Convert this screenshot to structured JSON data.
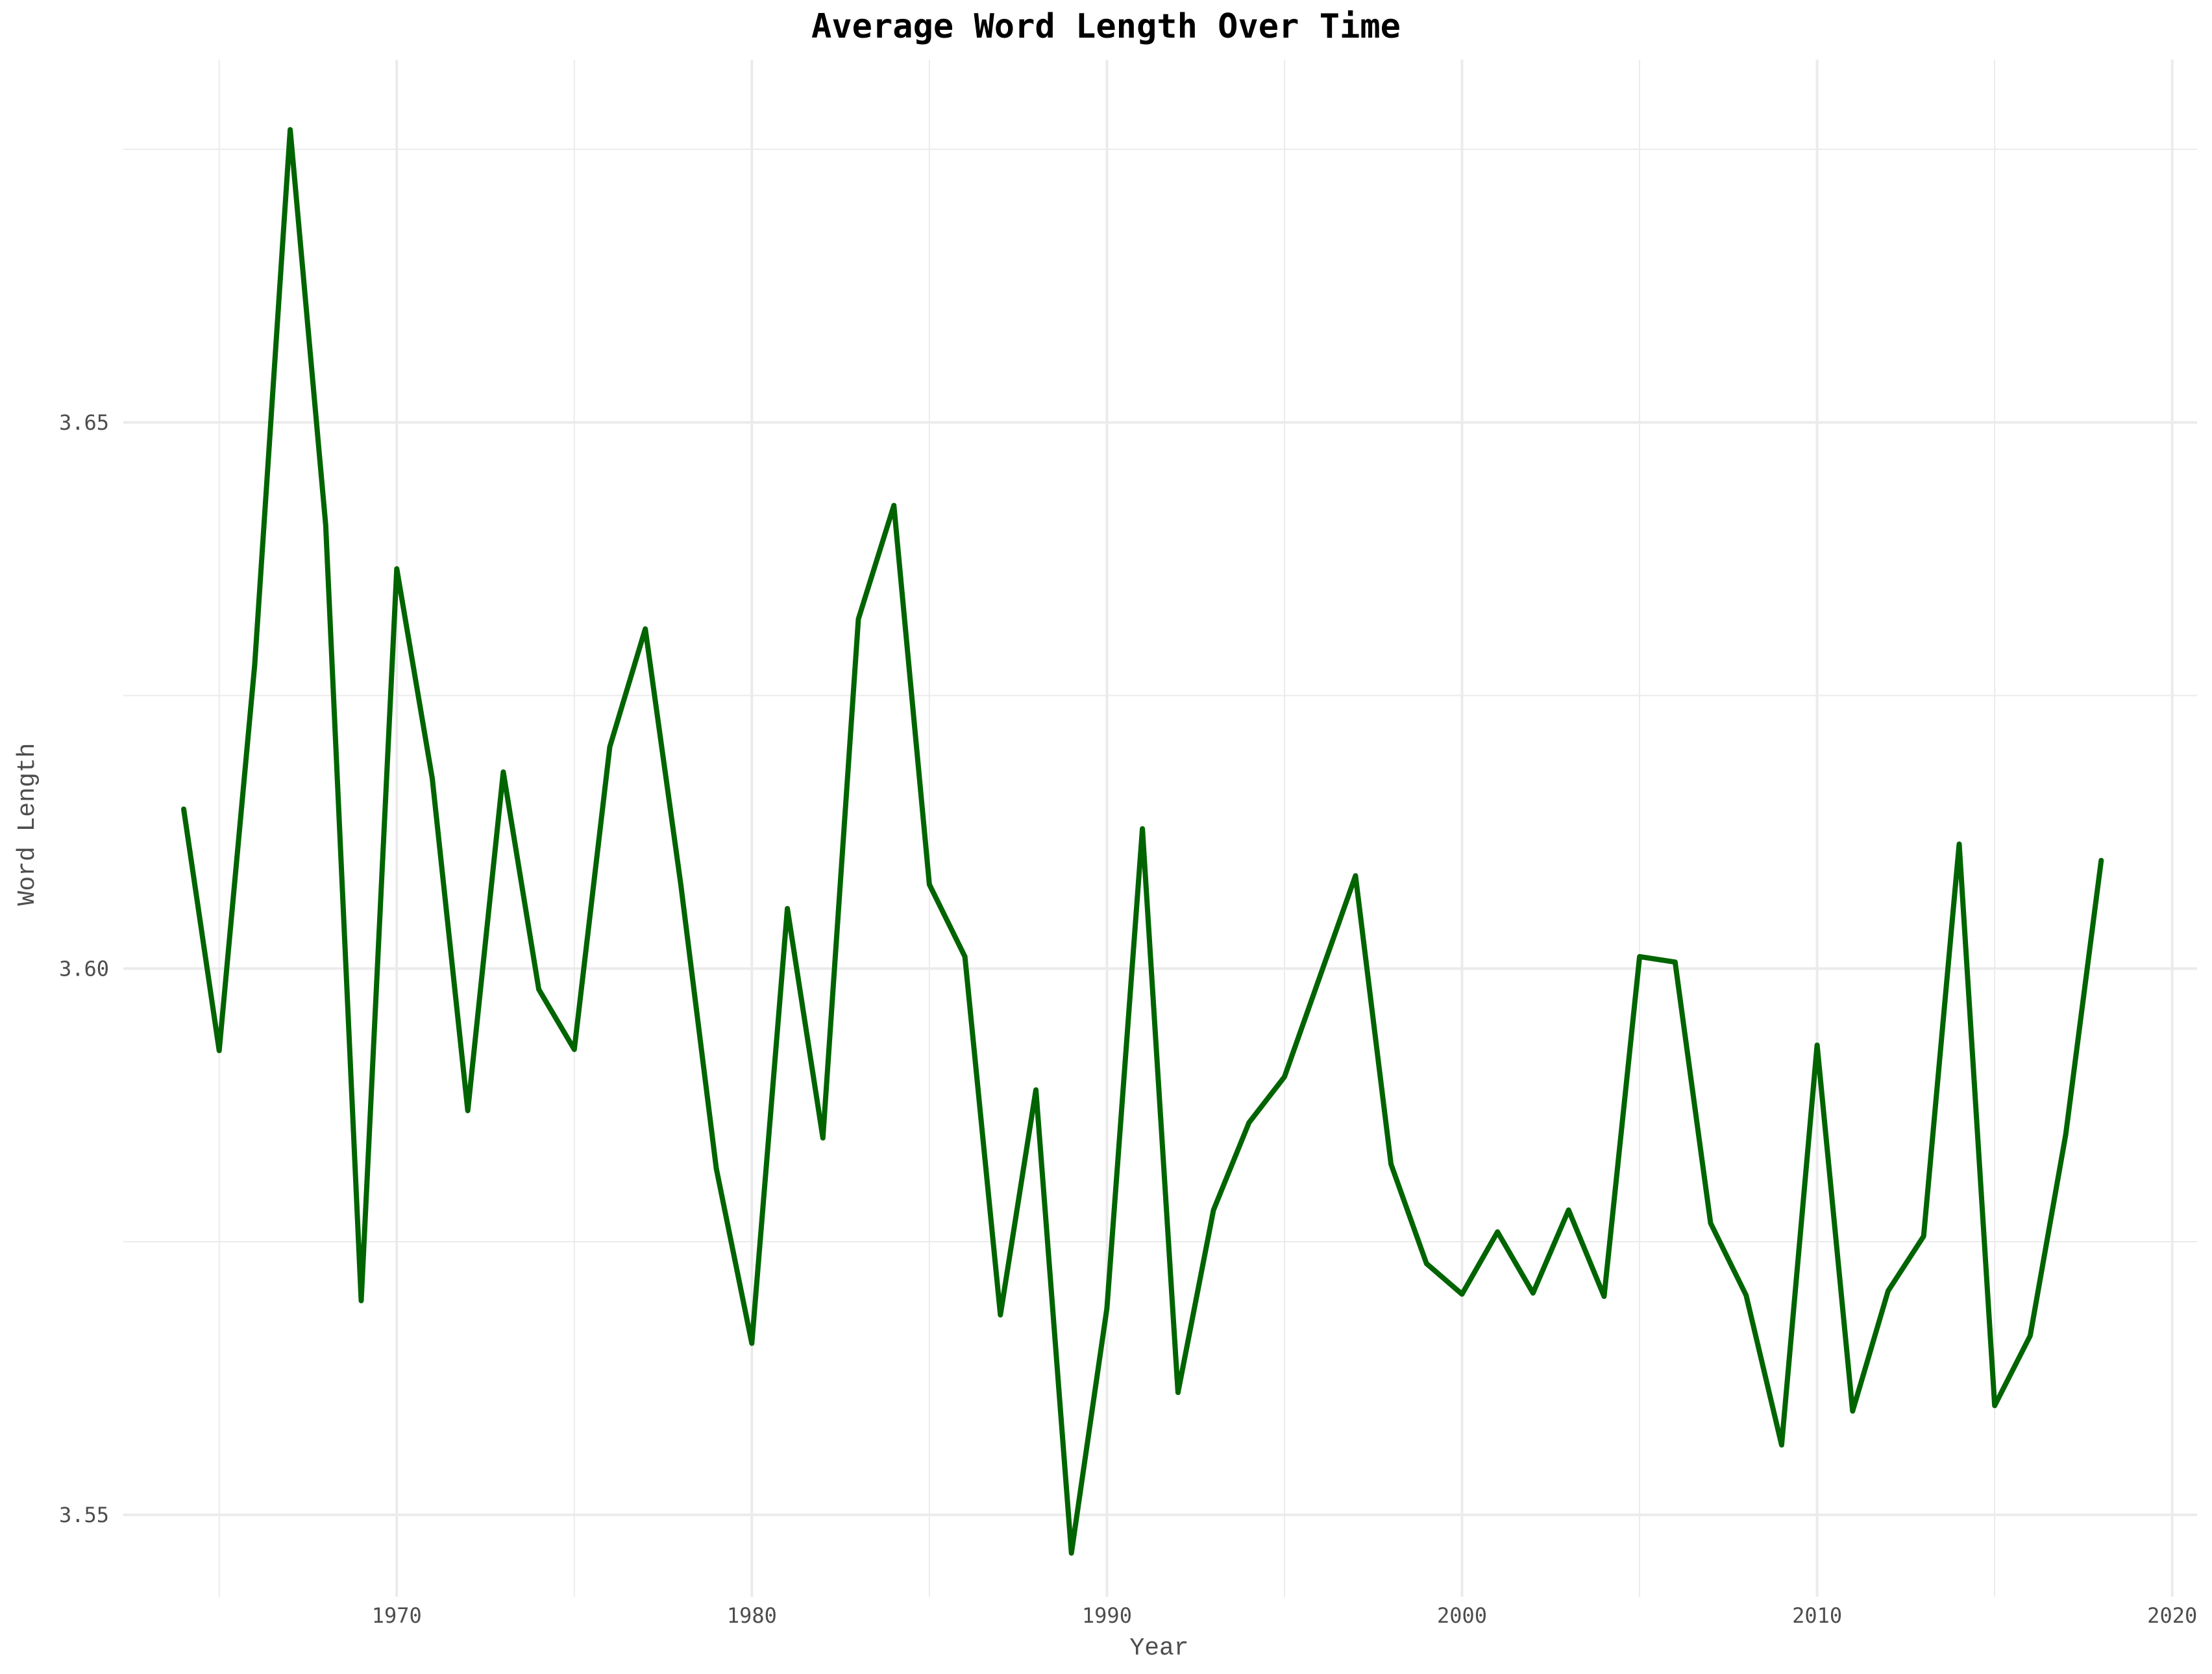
{
  "chart_data": {
    "type": "line",
    "title": "Average Word Length Over Time",
    "xlabel": "Year",
    "ylabel": "Word Length",
    "xlim": [
      1962.3,
      2020.7
    ],
    "ylim": [
      3.5425,
      3.6832
    ],
    "x_ticks": [
      1970,
      1980,
      1990,
      2000,
      2010,
      2020
    ],
    "x_minor_ticks": [
      1965,
      1975,
      1985,
      1995,
      2005,
      2015
    ],
    "y_ticks": [
      3.55,
      3.6,
      3.65
    ],
    "y_tick_labels": [
      "3.55",
      "3.60",
      "3.65"
    ],
    "y_minor_ticks": [
      3.575,
      3.625,
      3.675
    ],
    "grid": true,
    "line_color": "#006400",
    "series": [
      {
        "x": [
          1964,
          1965,
          1966,
          1967,
          1968,
          1969,
          1970,
          1971,
          1972,
          1973,
          1974,
          1975,
          1976,
          1977,
          1978,
          1979,
          1980,
          1981,
          1982,
          1983,
          1984,
          1985,
          1986,
          1987,
          1988,
          1989,
          1990,
          1991,
          1992,
          1993,
          1994,
          1995,
          1996,
          1997,
          1998,
          1999,
          2000,
          2001,
          2002,
          2003,
          2004,
          2005,
          2006,
          2007,
          2008,
          2009,
          2010,
          2011,
          2012,
          2013,
          2014,
          2015,
          2016,
          2017,
          2018
        ],
        "values": [
          3.6146,
          3.5925,
          3.6278,
          3.6768,
          3.6406,
          3.5696,
          3.6366,
          3.6174,
          3.587,
          3.618,
          3.5981,
          3.5926,
          3.6203,
          3.6311,
          3.6077,
          3.5817,
          3.5657,
          3.6055,
          3.5845,
          3.632,
          3.6424,
          3.6077,
          3.6011,
          3.5683,
          3.5889,
          3.5465,
          3.5689,
          3.6128,
          3.5612,
          3.5779,
          3.5859,
          3.5901,
          3.5993,
          3.6085,
          3.5821,
          3.573,
          3.5702,
          3.5759,
          3.5703,
          3.5779,
          3.57,
          3.6011,
          3.6006,
          3.5767,
          3.5701,
          3.5564,
          3.593,
          3.5595,
          3.5705,
          3.5755,
          3.6114,
          3.56,
          3.5664,
          3.5848,
          3.6099
        ]
      }
    ]
  }
}
